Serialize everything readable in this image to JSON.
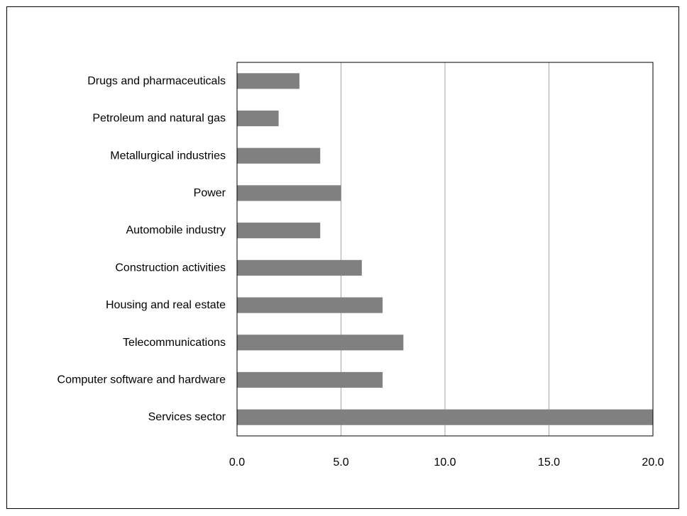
{
  "chart_data": {
    "type": "bar",
    "orientation": "horizontal",
    "title": "",
    "xlabel": "",
    "ylabel": "",
    "categories": [
      "Drugs and pharmaceuticals",
      "Petroleum and natural gas",
      "Metallurgical industries",
      "Power",
      "Automobile industry",
      "Construction activities",
      "Housing and real estate",
      "Telecommunications",
      "Computer software and hardware",
      "Services sector"
    ],
    "values": [
      3,
      2,
      4,
      5,
      4,
      6,
      7,
      8,
      7,
      20
    ],
    "xlim": [
      0,
      20
    ],
    "xticks": [
      "0.0",
      "5.0",
      "10.0",
      "15.0",
      "20.0"
    ],
    "tick_values": [
      0,
      5,
      10,
      15,
      20
    ],
    "grid": "vertical",
    "legend": "none",
    "bar_color": "#808080",
    "grid_color": "#a6a6a6"
  }
}
